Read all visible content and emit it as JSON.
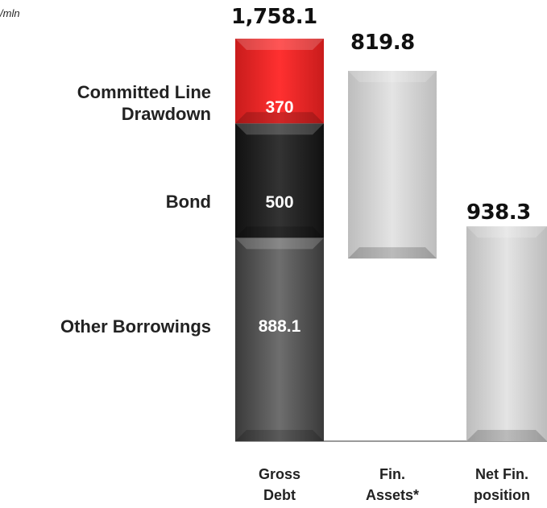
{
  "unit_label": "/mln",
  "chart_data": {
    "type": "bar",
    "subtype": "waterfall",
    "categories": [
      "Gross\nDebt",
      "Fin.\nAssets*",
      "Net Fin.\nposition"
    ],
    "totals": [
      "1,758.1",
      "819.8",
      "938.3"
    ],
    "gross_debt_stack": [
      {
        "label": "Other Borrowings",
        "value": 888.1,
        "value_text": "888.1",
        "color": "#5a5a5a"
      },
      {
        "label": "Bond",
        "value": 500,
        "value_text": "500",
        "color": "#222222"
      },
      {
        "label": "Committed Line\nDrawdown",
        "value": 370,
        "value_text": "370",
        "color": "#ee2222"
      }
    ],
    "financial_assets": 819.8,
    "net_financial_position": 938.3,
    "colors": {
      "floating": "#d4d4d4",
      "baseline": "#999999"
    }
  }
}
